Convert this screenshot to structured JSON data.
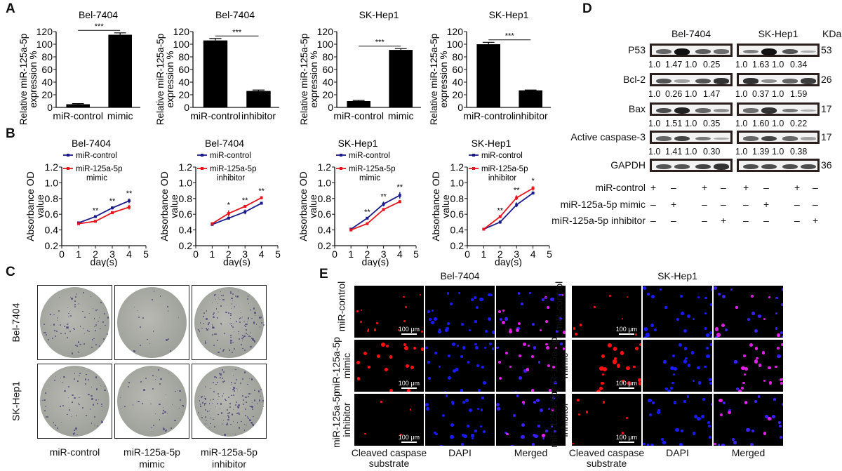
{
  "panels": {
    "A": "A",
    "B": "B",
    "C": "C",
    "D": "D",
    "E": "E"
  },
  "chart_data": [
    {
      "id": "A1",
      "type": "bar",
      "title": "Bel-7404",
      "categories": [
        "miR-control",
        "mimic"
      ],
      "values": [
        5,
        115
      ],
      "errors": [
        1,
        3
      ],
      "ylabel": "Relative miR-125a-5p expression %",
      "ylim": [
        0,
        120
      ],
      "yticks": [
        "0",
        "20",
        "40",
        "60",
        "80",
        "100",
        "120"
      ],
      "significance": "***"
    },
    {
      "id": "A2",
      "type": "bar",
      "title": "Bel-7404",
      "categories": [
        "miR-control",
        "inhibitor"
      ],
      "values": [
        106,
        26
      ],
      "errors": [
        3,
        1.5
      ],
      "ylabel": "Relative miR-125a-5p expression %",
      "ylim": [
        0,
        120
      ],
      "yticks": [
        "0",
        "20",
        "40",
        "60",
        "80",
        "100",
        "120"
      ],
      "significance": "***"
    },
    {
      "id": "A3",
      "type": "bar",
      "title": "SK-Hep1",
      "categories": [
        "miR-control",
        "mimic"
      ],
      "values": [
        10,
        91
      ],
      "errors": [
        1,
        2
      ],
      "ylabel": "Relative miR-125a-5p expression %",
      "ylim": [
        0,
        120
      ],
      "yticks": [
        "0",
        "20",
        "40",
        "60",
        "80",
        "100",
        "120"
      ],
      "significance": "***"
    },
    {
      "id": "A4",
      "type": "bar",
      "title": "SK-Hep1",
      "categories": [
        "miR-control",
        "inhibitor"
      ],
      "values": [
        100,
        27
      ],
      "errors": [
        3,
        0.5
      ],
      "ylabel": "Relative miR-125a-5p expression %",
      "ylim": [
        0,
        120
      ],
      "yticks": [
        "0",
        "20",
        "40",
        "60",
        "80",
        "100",
        "120"
      ],
      "significance": "***"
    },
    {
      "id": "B1",
      "type": "line",
      "title": "Bel-7404",
      "x": [
        1,
        2,
        3,
        4
      ],
      "series": [
        {
          "name": "miR-control",
          "color": "#1a1a8c",
          "values": [
            0.49,
            0.57,
            0.68,
            0.77
          ],
          "errors": [
            0.01,
            0.01,
            0.02,
            0.03
          ]
        },
        {
          "name": "miR-125a-5p mimic",
          "color": "#e8141c",
          "values": [
            0.48,
            0.51,
            0.62,
            0.69
          ],
          "errors": [
            0.01,
            0.015,
            0.02,
            0.03
          ]
        }
      ],
      "significance": [
        "",
        "**",
        "**",
        "**"
      ],
      "xlabel": "day(s)",
      "ylabel": "Absorbance OD value",
      "xlim": [
        0,
        5
      ],
      "ylim": [
        0.2,
        1.2
      ],
      "xticks": [
        "0",
        "1",
        "2",
        "3",
        "4",
        "5"
      ],
      "yticks": [
        "0.2",
        "0.4",
        "0.6",
        "0.8",
        "1.0",
        "1.2"
      ],
      "legend": [
        "miR-control",
        "miR-125a-5p",
        "mimic"
      ]
    },
    {
      "id": "B2",
      "type": "line",
      "title": "Bel-7404",
      "x": [
        1,
        2,
        3,
        4
      ],
      "series": [
        {
          "name": "miR-control",
          "color": "#1a1a8c",
          "values": [
            0.47,
            0.55,
            0.63,
            0.74
          ],
          "errors": [
            0.01,
            0.015,
            0.03,
            0.005
          ]
        },
        {
          "name": "miR-125a-5p inhibitor",
          "color": "#e8141c",
          "values": [
            0.48,
            0.61,
            0.7,
            0.81
          ],
          "errors": [
            0.01,
            0.04,
            0.01,
            0.02
          ]
        }
      ],
      "significance": [
        "",
        "*",
        "**",
        "**"
      ],
      "xlabel": "day(s)",
      "ylabel": "Absorbance OD value",
      "xlim": [
        0,
        5
      ],
      "ylim": [
        0.2,
        1.2
      ],
      "xticks": [
        "0",
        "1",
        "2",
        "3",
        "4",
        "5"
      ],
      "yticks": [
        "0.2",
        "0.4",
        "0.6",
        "0.8",
        "1.0",
        "1.2"
      ],
      "legend": [
        "miR-control",
        "miR-125a-5p",
        "inhibitor"
      ]
    },
    {
      "id": "B3",
      "type": "line",
      "title": "SK-Hep1",
      "x": [
        1,
        2,
        3,
        4
      ],
      "series": [
        {
          "name": "miR-control",
          "color": "#1a1a8c",
          "values": [
            0.41,
            0.55,
            0.73,
            0.84
          ],
          "errors": [
            0.01,
            0.01,
            0.03,
            0.04
          ]
        },
        {
          "name": "miR-125a-5p mimic",
          "color": "#e8141c",
          "values": [
            0.4,
            0.48,
            0.66,
            0.76
          ],
          "errors": [
            0.01,
            0.01,
            0.02,
            0.02
          ]
        }
      ],
      "significance": [
        "",
        "**",
        "**",
        "**"
      ],
      "xlabel": "day(s)",
      "ylabel": "Absorbance OD value",
      "xlim": [
        0,
        5
      ],
      "ylim": [
        0.2,
        1.2
      ],
      "xticks": [
        "0",
        "1",
        "2",
        "3",
        "4",
        "5"
      ],
      "yticks": [
        "0.2",
        "0.4",
        "0.6",
        "0.8",
        "1.0",
        "1.2"
      ],
      "legend": [
        "miR-control",
        "miR-125a-5p",
        "mimic"
      ]
    },
    {
      "id": "B4",
      "type": "line",
      "title": "SK-Hep1",
      "x": [
        1,
        2,
        3,
        4
      ],
      "series": [
        {
          "name": "miR-control",
          "color": "#1a1a8c",
          "values": [
            0.41,
            0.5,
            0.72,
            0.87
          ],
          "errors": [
            0.01,
            0.02,
            0.03,
            0.02
          ]
        },
        {
          "name": "miR-125a-5p inhibitor",
          "color": "#e8141c",
          "values": [
            0.41,
            0.57,
            0.81,
            0.93
          ],
          "errors": [
            0.01,
            0.01,
            0.03,
            0.03
          ]
        }
      ],
      "significance": [
        "",
        "**",
        "**",
        "*"
      ],
      "xlabel": "day(s)",
      "ylabel": "Absorbance OD value",
      "xlim": [
        0,
        5
      ],
      "ylim": [
        0.2,
        1.2
      ],
      "xticks": [
        "0",
        "1",
        "2",
        "3",
        "4",
        "5"
      ],
      "yticks": [
        "0.2",
        "0.4",
        "0.6",
        "0.8",
        "1.0",
        "1.2"
      ],
      "legend": [
        "miR-control",
        "miR-125a-5p",
        "inhibitor"
      ]
    }
  ],
  "colony": {
    "rows": [
      "Bel-7404",
      "SK-Hep1"
    ],
    "cols": [
      [
        "miR-control"
      ],
      [
        "miR-125a-5p",
        "mimic"
      ],
      [
        "miR-125a-5p",
        "inhibitor"
      ]
    ],
    "density": [
      [
        0.55,
        0.12,
        0.9
      ],
      [
        0.45,
        0.3,
        0.95
      ]
    ]
  },
  "western": {
    "groups": [
      "Bel-7404",
      "SK-Hep1"
    ],
    "kda_label": "KDa",
    "proteins": [
      {
        "name": "P53",
        "kda": "53",
        "bands": [
          0.5,
          1,
          0,
          0.55,
          0.45,
          0.35,
          1,
          0,
          0.6,
          0.1
        ],
        "quant": [
          "1.0",
          "1.47",
          "1.0",
          "0.25",
          "1.0",
          "1.63",
          "1.0",
          "0.34"
        ]
      },
      {
        "name": "Bcl-2",
        "kda": "26",
        "bands": [
          0.6,
          0.15,
          0,
          0.6,
          0.8,
          0.8,
          0.25,
          0,
          0.5,
          0.75
        ],
        "quant": [
          "1.0",
          "0.26",
          "1.0",
          "1.47",
          "1.0",
          "0.37",
          "1.0",
          "1.59"
        ]
      },
      {
        "name": "Bax",
        "kda": "17",
        "bands": [
          0.65,
          0.9,
          0,
          0.5,
          0.25,
          0.45,
          0.8,
          0,
          0.4,
          0.08
        ],
        "quant": [
          "1.0",
          "1.51",
          "1.0",
          "0.35",
          "1.0",
          "1.60",
          "1.0",
          "0.22"
        ]
      },
      {
        "name": "Active caspase-3",
        "kda": "17",
        "bands": [
          0.5,
          0.7,
          0,
          0.4,
          0.1,
          0.5,
          0.7,
          0,
          0.5,
          0.15
        ],
        "quant": [
          "1.0",
          "1.41",
          "1.0",
          "0.30",
          "1.0",
          "1.39",
          "1.0",
          "0.38"
        ]
      },
      {
        "name": "GAPDH",
        "kda": "36",
        "bands": [
          0.6,
          0.6,
          0,
          0.7,
          0.8,
          0.65,
          0.65,
          0,
          0.65,
          0.65
        ],
        "quant": []
      }
    ],
    "conditions": [
      {
        "name": "miR-control",
        "signs": [
          "+",
          "–",
          "+",
          "–",
          "+",
          "–",
          "+",
          "–"
        ]
      },
      {
        "name": "miR-125a-5p mimic",
        "signs": [
          "–",
          "+",
          "–",
          "–",
          "–",
          "+",
          "–",
          "–"
        ]
      },
      {
        "name": "miR-125a-5p inhibitor",
        "signs": [
          "–",
          "–",
          "–",
          "+",
          "–",
          "–",
          "–",
          "+"
        ]
      }
    ]
  },
  "fluorescence": {
    "groups": [
      "Bel-7404",
      "SK-Hep1"
    ],
    "rows": [
      [
        "miR-control"
      ],
      [
        "miR-125a-5p",
        "mimic"
      ],
      [
        "miR-125a-5p",
        "inhibitor"
      ]
    ],
    "cols": [
      [
        "Cleaved caspase",
        "substrate"
      ],
      [
        "DAPI"
      ],
      [
        "Merged"
      ]
    ],
    "scale_bar": "100 μm"
  }
}
